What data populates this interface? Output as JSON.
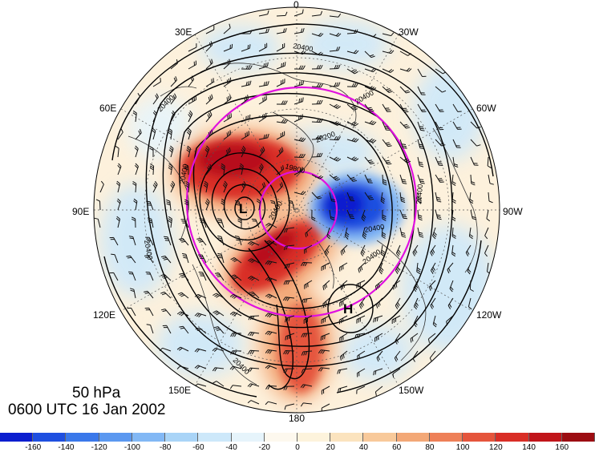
{
  "title": {
    "level": "50 hPa",
    "time": "0600 UTC 16 Jan 2002"
  },
  "longitude_labels": {
    "lon_0": "0",
    "lon_30e": "30E",
    "lon_30w": "30W",
    "lon_60e": "60E",
    "lon_60w": "60W",
    "lon_90e": "90E",
    "lon_90w": "90W",
    "lon_120e": "120E",
    "lon_120w": "120W",
    "lon_150e": "150E",
    "lon_150w": "150W",
    "lon_180": "180"
  },
  "contour_labels": [
    "20400",
    "20400",
    "20400",
    "20400",
    "20400",
    "20400",
    "20400",
    "20400",
    "20400",
    "20200",
    "19800",
    "20400"
  ],
  "pressure_centers": {
    "low": "L",
    "high": "H"
  },
  "colorbar": {
    "ticks": [
      "-160",
      "-140",
      "-120",
      "-100",
      "-80",
      "-60",
      "-40",
      "-20",
      "0",
      "20",
      "40",
      "60",
      "80",
      "100",
      "120",
      "140",
      "160"
    ],
    "colors": [
      "#0b1ecf",
      "#1f4fe0",
      "#3a78ea",
      "#5b98f0",
      "#82b8f5",
      "#a9d4f7",
      "#cde8fa",
      "#e6f4fb",
      "#fdf3dc",
      "#fbe3be",
      "#f8c99a",
      "#f3a877",
      "#ee8058",
      "#e5553c",
      "#d92e26",
      "#c1151a",
      "#9c0d12"
    ]
  },
  "colors": {
    "contour": "#000000",
    "magenta_ring": "#e010e0",
    "coast": "#333333"
  }
}
